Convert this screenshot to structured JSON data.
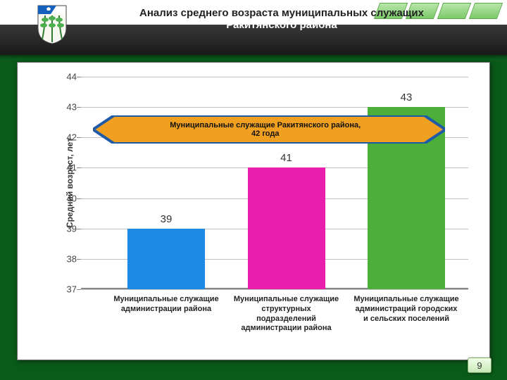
{
  "title_line1": "Анализ среднего возраста муниципальных служащих",
  "title_line2": "Ракитянского района",
  "page_number": "9",
  "chart": {
    "type": "bar",
    "ylabel": "Средний возраст, лет",
    "ylim": [
      37,
      44
    ],
    "ytick_step": 1,
    "grid_color": "#bfbfbf",
    "background_color": "#ffffff",
    "label_fontsize": 12,
    "value_fontsize": 15,
    "categories": [
      "Муниципальные служащие администрации района",
      "Муниципальные служащие структурных подразделений администрации района",
      "Муниципальные служащие администраций городских и сельских поселений"
    ],
    "values": [
      39,
      41,
      43
    ],
    "bar_colors": [
      "#1e88e5",
      "#e91ead",
      "#4caf3a"
    ],
    "bar_width_pct": 20,
    "bar_positions_pct": [
      12,
      43,
      74
    ]
  },
  "callout": {
    "text_line1": "Муниципальные служащие Ракитянского района,",
    "text_line2": "42 года",
    "fill_color": "#f0a020",
    "border_color": "#1e5aa8",
    "points_to_value": 42
  }
}
